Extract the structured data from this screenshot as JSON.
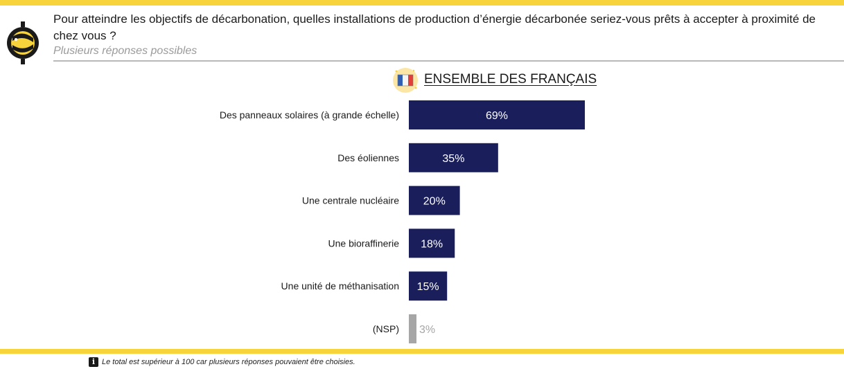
{
  "header": {
    "question": "Pour atteindre les objectifs de décarbonation, quelles installations de production d’énergie décarbonée seriez-vous prêts à accepter à proximité de chez vous ?",
    "subtitle": "Plusieurs réponses possibles"
  },
  "segment": {
    "title": "ENSEMBLE DES FRANÇAIS",
    "icon": "france-flag-icon"
  },
  "footnote": {
    "icon": "info-icon",
    "icon_glyph": "i",
    "text": "Le total est supérieur à 100 car plusieurs réponses pouvaient être choisies."
  },
  "colors": {
    "accent": "#f7d33c",
    "bar": "#1a1f5c",
    "bar_nsp": "#a6a6a6",
    "label_nsp": "#a6a6a6"
  },
  "chart_data": {
    "type": "bar",
    "orientation": "horizontal",
    "categories": [
      "Des panneaux solaires (à grande échelle)",
      "Des éoliennes",
      "Une centrale nucléaire",
      "Une bioraffinerie",
      "Une unité de méthanisation",
      "(NSP)"
    ],
    "values": [
      69,
      35,
      20,
      18,
      15,
      3
    ],
    "data_labels": [
      "69%",
      "35%",
      "20%",
      "18%",
      "15%",
      "3%"
    ],
    "unit": "%",
    "xlim": [
      0,
      100
    ],
    "grid": false,
    "legend": "none"
  }
}
